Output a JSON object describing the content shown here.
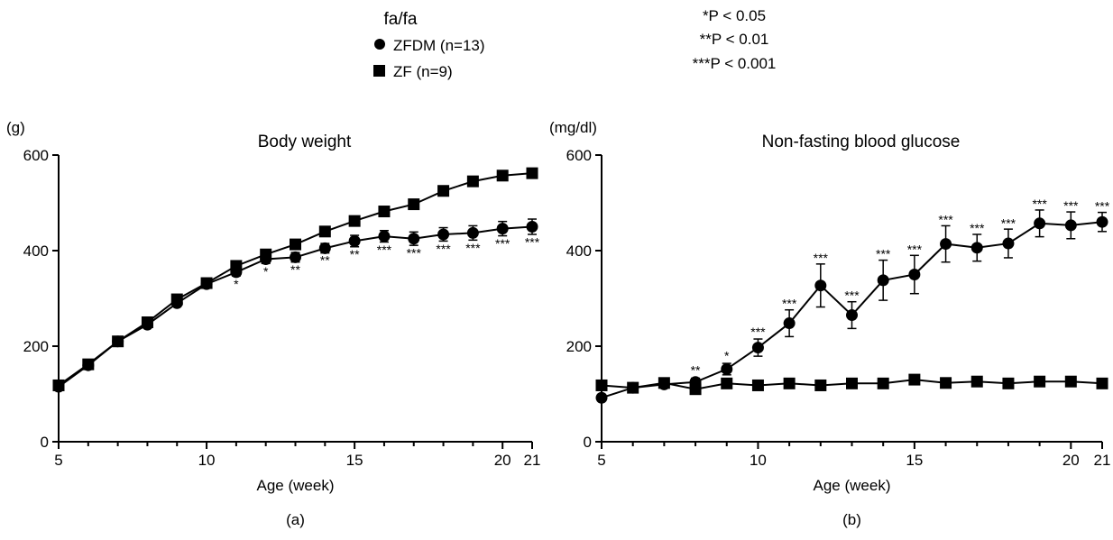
{
  "legend": {
    "title": "fa/fa",
    "items": [
      {
        "label": "ZFDM (n=13)",
        "marker": "circle"
      },
      {
        "label": "ZF (n=9)",
        "marker": "square"
      }
    ]
  },
  "significance_key": [
    "*P < 0.05",
    "**P < 0.01",
    "***P < 0.001"
  ],
  "colors": {
    "ink": "#000000",
    "background": "#ffffff"
  },
  "chart_data": [
    {
      "type": "line",
      "panel_label": "(a)",
      "title": "Body weight",
      "unit_label": "(g)",
      "xlabel": "Age (week)",
      "ylabel": "",
      "xlim": [
        5,
        21
      ],
      "ylim": [
        0,
        600
      ],
      "xticks": [
        5,
        10,
        15,
        20,
        21
      ],
      "yticks": [
        0,
        200,
        400,
        600
      ],
      "grid": false,
      "x": [
        5,
        6,
        7,
        8,
        9,
        10,
        11,
        12,
        13,
        14,
        15,
        16,
        17,
        18,
        19,
        20,
        21
      ],
      "series": [
        {
          "name": "ZFDM (n=13)",
          "marker": "circle",
          "values": [
            115,
            160,
            210,
            245,
            290,
            330,
            355,
            382,
            386,
            405,
            420,
            430,
            425,
            434,
            437,
            446,
            450
          ],
          "errors": [
            3,
            4,
            5,
            5,
            6,
            7,
            8,
            9,
            10,
            10,
            12,
            12,
            14,
            14,
            15,
            15,
            16
          ]
        },
        {
          "name": "ZF (n=9)",
          "marker": "square",
          "values": [
            118,
            162,
            210,
            250,
            298,
            332,
            368,
            392,
            413,
            440,
            462,
            482,
            497,
            525,
            545,
            557,
            562
          ],
          "errors": [
            2,
            3,
            3,
            4,
            4,
            5,
            5,
            5,
            6,
            6,
            6,
            6,
            7,
            7,
            7,
            8,
            8
          ]
        }
      ],
      "annotations": [
        {
          "x": 11,
          "y": 330,
          "text": "*"
        },
        {
          "x": 12,
          "y": 357,
          "text": "*"
        },
        {
          "x": 13,
          "y": 360,
          "text": "**"
        },
        {
          "x": 14,
          "y": 380,
          "text": "**"
        },
        {
          "x": 15,
          "y": 392,
          "text": "**"
        },
        {
          "x": 16,
          "y": 402,
          "text": "***"
        },
        {
          "x": 17,
          "y": 395,
          "text": "***"
        },
        {
          "x": 18,
          "y": 404,
          "text": "***"
        },
        {
          "x": 19,
          "y": 406,
          "text": "***"
        },
        {
          "x": 20,
          "y": 415,
          "text": "***"
        },
        {
          "x": 21,
          "y": 418,
          "text": "***"
        }
      ]
    },
    {
      "type": "line",
      "panel_label": "(b)",
      "title": "Non-fasting blood glucose",
      "unit_label": "(mg/dl)",
      "xlabel": "Age (week)",
      "ylabel": "",
      "xlim": [
        5,
        21
      ],
      "ylim": [
        0,
        600
      ],
      "xticks": [
        5,
        10,
        15,
        20,
        21
      ],
      "yticks": [
        0,
        200,
        400,
        600
      ],
      "grid": false,
      "x": [
        5,
        6,
        7,
        8,
        9,
        10,
        11,
        12,
        13,
        14,
        15,
        16,
        17,
        18,
        19,
        20,
        21
      ],
      "series": [
        {
          "name": "ZFDM (n=13)",
          "marker": "circle",
          "values": [
            92,
            113,
            120,
            125,
            152,
            197,
            248,
            327,
            265,
            338,
            350,
            414,
            406,
            415,
            457,
            453,
            460
          ],
          "errors": [
            5,
            6,
            6,
            8,
            12,
            18,
            28,
            45,
            28,
            42,
            40,
            38,
            28,
            30,
            28,
            28,
            20
          ]
        },
        {
          "name": "ZF (n=9)",
          "marker": "square",
          "values": [
            118,
            113,
            123,
            110,
            122,
            118,
            122,
            118,
            122,
            122,
            130,
            123,
            126,
            122,
            126,
            126,
            122
          ],
          "errors": [
            3,
            3,
            4,
            3,
            4,
            3,
            4,
            3,
            4,
            3,
            4,
            3,
            4,
            3,
            3,
            3,
            3
          ]
        }
      ],
      "annotations": [
        {
          "x": 8,
          "y": 150,
          "text": "**"
        },
        {
          "x": 9,
          "y": 180,
          "text": "*"
        },
        {
          "x": 10,
          "y": 230,
          "text": "***"
        },
        {
          "x": 11,
          "y": 290,
          "text": "***"
        },
        {
          "x": 12,
          "y": 385,
          "text": "***"
        },
        {
          "x": 13,
          "y": 307,
          "text": "***"
        },
        {
          "x": 14,
          "y": 393,
          "text": "***"
        },
        {
          "x": 15,
          "y": 403,
          "text": "***"
        },
        {
          "x": 16,
          "y": 465,
          "text": "***"
        },
        {
          "x": 17,
          "y": 447,
          "text": "***"
        },
        {
          "x": 18,
          "y": 458,
          "text": "***"
        },
        {
          "x": 19,
          "y": 498,
          "text": "***"
        },
        {
          "x": 20,
          "y": 494,
          "text": "***"
        },
        {
          "x": 21,
          "y": 493,
          "text": "***"
        }
      ]
    }
  ]
}
